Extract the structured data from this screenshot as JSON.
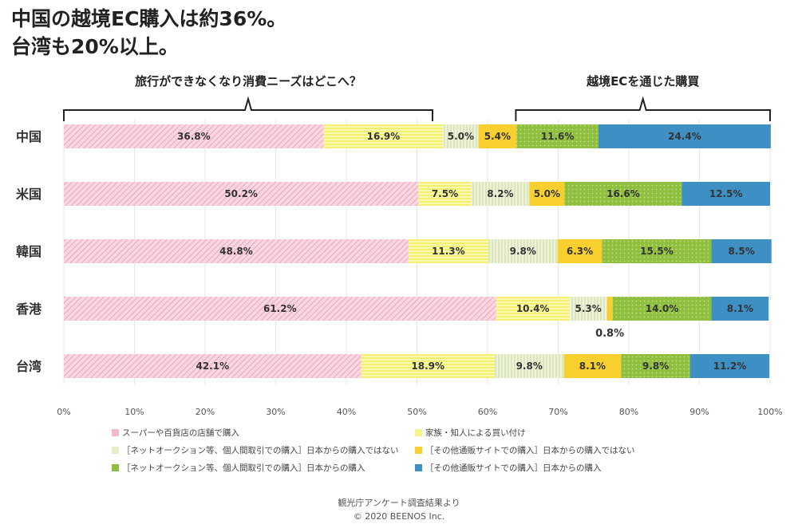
{
  "headline": {
    "line1": "中国の越境EC購入は約36%。",
    "line2": "台湾も20%以上。"
  },
  "brackets": [
    {
      "label": "旅行ができなくなり消費ニーズはどこへ？",
      "from": 0,
      "to": 52.2
    },
    {
      "label": "越境ECを通じた購買",
      "from": 64,
      "to": 100
    }
  ],
  "chart_data": {
    "type": "bar",
    "orientation": "horizontal",
    "stacked": true,
    "categories": [
      "中国",
      "米国",
      "韓国",
      "香港",
      "台湾"
    ],
    "series": [
      {
        "name": "スーパーや百貨店の店舗で購入",
        "color": "#f2b8cc",
        "pattern": "diagonal",
        "values": [
          36.8,
          50.2,
          48.8,
          61.2,
          42.1
        ]
      },
      {
        "name": "家族・知人による買い付け",
        "color": "#f8f58a",
        "pattern": "horizontal",
        "values": [
          16.9,
          7.5,
          11.3,
          10.4,
          18.9
        ]
      },
      {
        "name": "［ネットオークション等、個人間取引での購入］日本からの購入ではない",
        "color": "#e3edc8",
        "pattern": "vertical",
        "values": [
          5.0,
          8.2,
          9.8,
          5.3,
          9.8
        ]
      },
      {
        "name": "［その他通販サイトでの購入］日本からの購入ではない",
        "color": "#f7cf2e",
        "pattern": "solid",
        "values": [
          5.4,
          5.0,
          6.3,
          0.8,
          8.1
        ]
      },
      {
        "name": "［ネットオークション等、個人間取引での購入］日本からの購入",
        "color": "#8fbf3e",
        "pattern": "dots",
        "values": [
          11.6,
          16.6,
          15.5,
          14.0,
          9.8
        ]
      },
      {
        "name": "［その他通販サイトでの購入］日本からの購入",
        "color": "#3d8fc4",
        "pattern": "solid",
        "values": [
          24.4,
          12.5,
          8.5,
          8.1,
          11.2
        ]
      }
    ],
    "data_labels": [
      [
        "36.8%",
        "16.9%",
        "5.0%",
        "5.4%",
        "11.6%",
        "24.4%"
      ],
      [
        "50.2%",
        "7.5%",
        "8.2%",
        "5.0%",
        "16.6%",
        "12.5%"
      ],
      [
        "48.8%",
        "11.3%",
        "9.8%",
        "6.3%",
        "15.5%",
        "8.5%"
      ],
      [
        "61.2%",
        "10.4%",
        "5.3%",
        "",
        "14.0%",
        "8.1%"
      ],
      [
        "42.1%",
        "18.9%",
        "9.8%",
        "8.1%",
        "9.8%",
        "11.2%"
      ]
    ],
    "annotation": {
      "text": "0.8%",
      "category": "香港",
      "series_index": 3
    },
    "xticks": [
      "0%",
      "10%",
      "20%",
      "30%",
      "40%",
      "50%",
      "60%",
      "70%",
      "80%",
      "90%",
      "100%"
    ],
    "xlim": [
      0,
      100
    ],
    "legend_position": "bottom"
  },
  "footer": {
    "source": "観光庁アンケート調査結果より",
    "copyright": "© 2020 BEENOS Inc."
  }
}
